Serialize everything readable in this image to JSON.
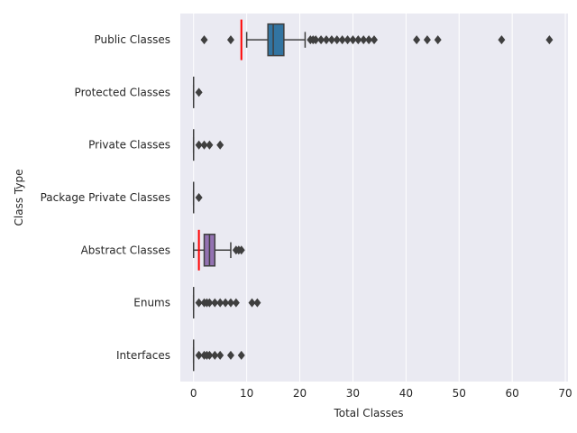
{
  "chart_data": {
    "type": "boxplot",
    "orientation": "horizontal",
    "xlabel": "Total Classes",
    "ylabel": "Class Type",
    "xlim": [
      -2.5,
      70.5
    ],
    "xticks": [
      0,
      10,
      20,
      30,
      40,
      50,
      60,
      70
    ],
    "grid": true,
    "categories": [
      "Public Classes",
      "Protected Classes",
      "Private Classes",
      "Package Private Classes",
      "Abstract Classes",
      "Enums",
      "Interfaces"
    ],
    "boxes": [
      {
        "label": "Public Classes",
        "color": "#3274a1",
        "min": 10,
        "q1": 14,
        "median": 15,
        "q3": 17,
        "max": 21,
        "reference": 9,
        "outliers": [
          2,
          7,
          22,
          22.5,
          23,
          24,
          25,
          26,
          27,
          28,
          29,
          30,
          31,
          32,
          33,
          34,
          42,
          44,
          46,
          58,
          67
        ]
      },
      {
        "label": "Protected Classes",
        "color": "#e1812c",
        "min": 0,
        "q1": 0,
        "median": 0,
        "q3": 0,
        "max": 0,
        "outliers": [
          1
        ]
      },
      {
        "label": "Private Classes",
        "color": "#3a923a",
        "min": 0,
        "q1": 0,
        "median": 0,
        "q3": 0,
        "max": 0,
        "outliers": [
          1,
          2,
          3,
          5
        ]
      },
      {
        "label": "Package Private Classes",
        "color": "#c03d3e",
        "min": 0,
        "q1": 0,
        "median": 0,
        "q3": 0,
        "max": 0,
        "outliers": [
          1
        ]
      },
      {
        "label": "Abstract Classes",
        "color": "#9372b2",
        "min": 0,
        "q1": 2,
        "median": 3,
        "q3": 4,
        "max": 7,
        "reference": 1,
        "outliers": [
          8,
          8.5,
          9
        ]
      },
      {
        "label": "Enums",
        "color": "#845b53",
        "min": 0,
        "q1": 0,
        "median": 0,
        "q3": 0,
        "max": 0,
        "outliers": [
          1,
          2,
          2.5,
          3,
          4,
          5,
          6,
          7,
          8,
          11,
          12
        ]
      },
      {
        "label": "Interfaces",
        "color": "#d684bd",
        "min": 0,
        "q1": 0,
        "median": 0,
        "q3": 0,
        "max": 0,
        "outliers": [
          1,
          2,
          2.5,
          3,
          4,
          5,
          7,
          9
        ]
      }
    ],
    "reference_color": "#ff0000",
    "background_color": "#eaeaf2",
    "grid_color": "#ffffff",
    "line_color": "#3f3f3f"
  }
}
